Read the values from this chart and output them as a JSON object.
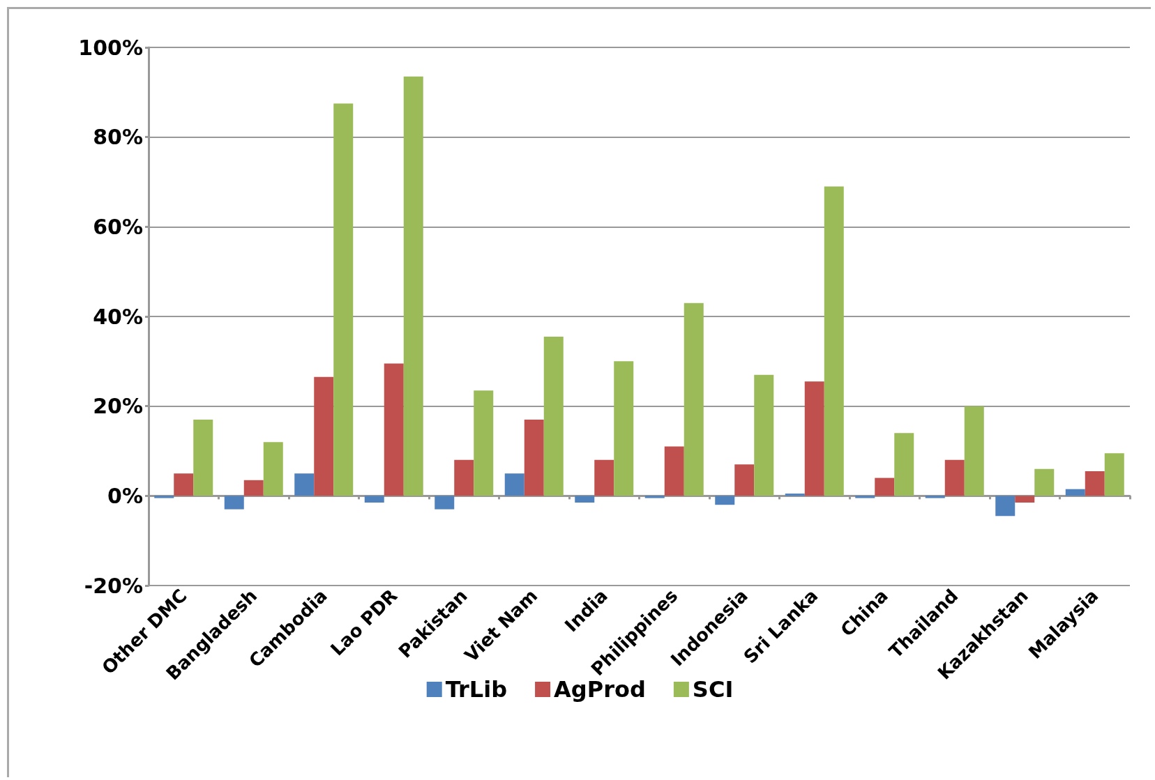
{
  "chart_data": {
    "type": "bar",
    "categories": [
      "Other DMC",
      "Bangladesh",
      "Cambodia",
      "Lao PDR",
      "Pakistan",
      "Viet Nam",
      "India",
      "Philippines",
      "Indonesia",
      "Sri Lanka",
      "China",
      "Thailand",
      "Kazakhstan",
      "Malaysia"
    ],
    "series": [
      {
        "name": "TrLib",
        "color": "#4f81bd",
        "values": [
          -0.5,
          -3,
          5,
          -1.5,
          -3,
          5,
          -1.5,
          -0.5,
          -2,
          0.5,
          -0.5,
          -0.5,
          -4.5,
          1.5
        ]
      },
      {
        "name": "AgProd",
        "color": "#c0504d",
        "values": [
          5,
          3.5,
          26.5,
          29.5,
          8,
          17,
          8,
          11,
          7,
          25.5,
          4,
          8,
          -1.5,
          5.5
        ]
      },
      {
        "name": "SCI",
        "color": "#9bbb59",
        "values": [
          17,
          12,
          87.5,
          93.5,
          23.5,
          35.5,
          30,
          43,
          27,
          69,
          14,
          20,
          6,
          9.5
        ]
      }
    ],
    "ylim": [
      -20,
      100
    ],
    "yticks": [
      {
        "value": -20,
        "label": "-20%"
      },
      {
        "value": 0,
        "label": "0%"
      },
      {
        "value": 20,
        "label": "20%"
      },
      {
        "value": 40,
        "label": "40%"
      },
      {
        "value": 60,
        "label": "60%"
      },
      {
        "value": 80,
        "label": "80%"
      },
      {
        "value": 100,
        "label": "100%"
      }
    ],
    "grid": "y",
    "legend": "bottom"
  }
}
